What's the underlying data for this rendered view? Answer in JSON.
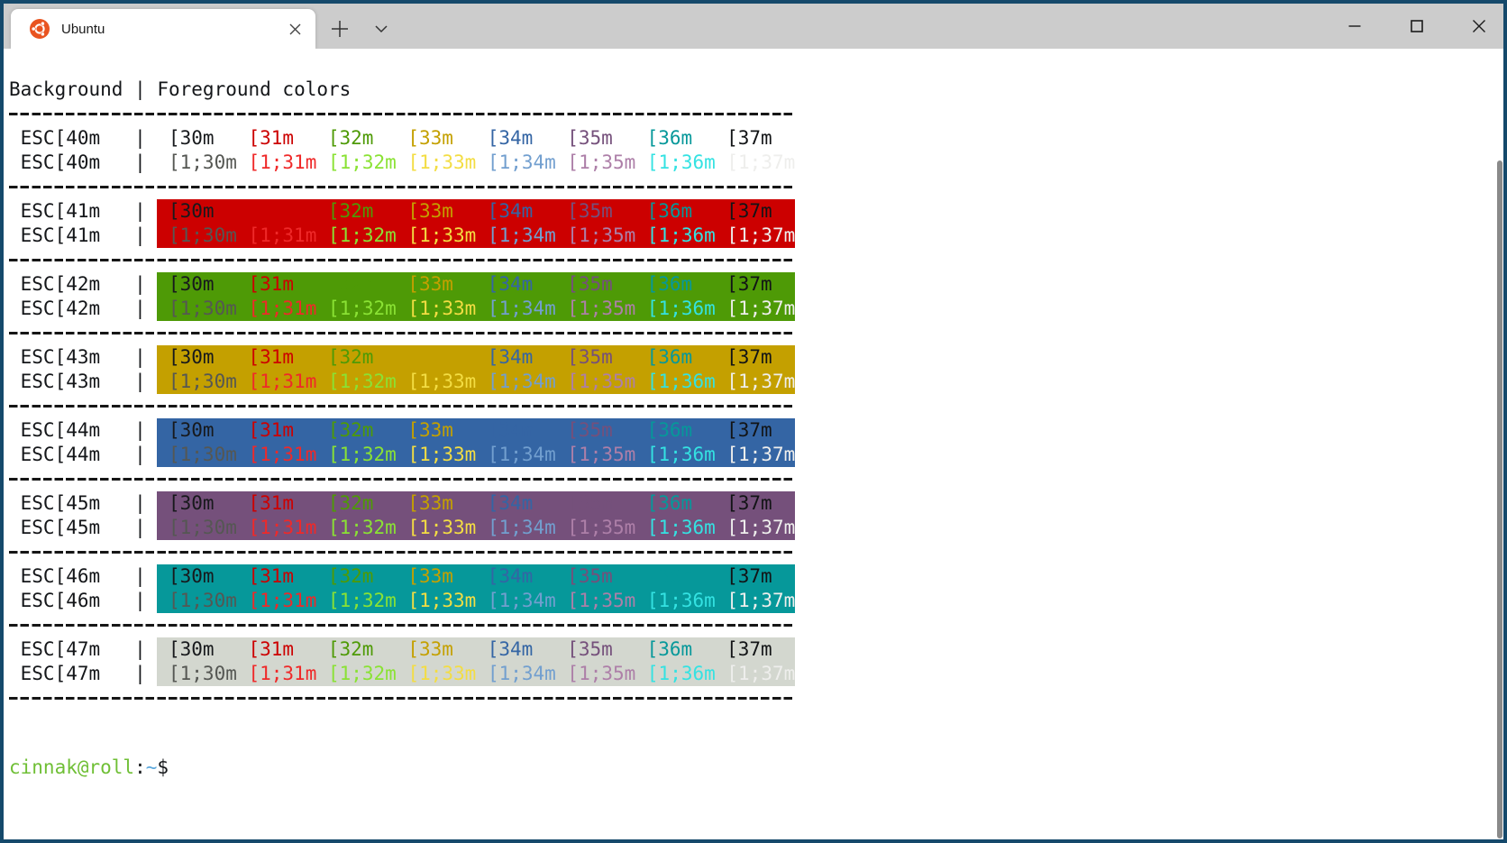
{
  "window": {
    "tab_title": "Ubuntu",
    "tabbar_bg": "#CCCCCC",
    "border_color": "#15496B",
    "ubuntu_orange": "#E95420",
    "controls": {
      "minimize": "minimize",
      "maximize": "maximize",
      "close": "close"
    }
  },
  "terminal": {
    "header": "Background | Foreground colors",
    "pipe": "|",
    "separator": "---------------------------------------------------------------------",
    "default_fg": "#141619",
    "columns": {
      "normal": {
        "codes": [
          "[30m",
          "[31m",
          "[32m",
          "[33m",
          "[34m",
          "[35m",
          "[36m",
          "[37m"
        ],
        "colors": [
          "#17191C",
          "#CC0000",
          "#4E9A06",
          "#C4A000",
          "#3465A4",
          "#75507B",
          "#06989A",
          "#121416"
        ]
      },
      "bright": {
        "codes": [
          "[1;30m",
          "[1;31m",
          "[1;32m",
          "[1;33m",
          "[1;34m",
          "[1;35m",
          "[1;36m",
          "[1;37m"
        ],
        "colors": [
          "#555753",
          "#EF2929",
          "#8AE234",
          "#F3DD43",
          "#729FCF",
          "#AD7FA8",
          "#34E2E2",
          "#EEEEEC"
        ]
      }
    },
    "rows": [
      {
        "label": "ESC[40m",
        "bg": "transparent"
      },
      {
        "label": "ESC[41m",
        "bg": "#CC0000"
      },
      {
        "label": "ESC[42m",
        "bg": "#4E9A06"
      },
      {
        "label": "ESC[43m",
        "bg": "#C4A000"
      },
      {
        "label": "ESC[44m",
        "bg": "#3465A4"
      },
      {
        "label": "ESC[45m",
        "bg": "#75507B"
      },
      {
        "label": "ESC[46m",
        "bg": "#06989A"
      },
      {
        "label": "ESC[47m",
        "bg": "#D3D7CF"
      }
    ],
    "prompt": {
      "user_host": "cinnak@roll",
      "colon": ":",
      "path": "~",
      "dollar": "$",
      "user_host_color": "#6FBF35",
      "path_color": "#5CA8DC"
    }
  }
}
